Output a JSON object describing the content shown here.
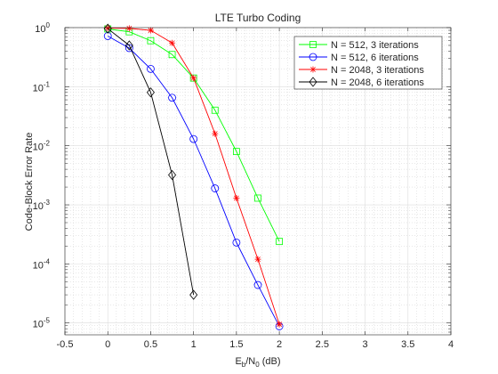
{
  "chart_data": {
    "type": "line",
    "title": "LTE Turbo Coding",
    "xlabel": {
      "main": "E",
      "sub": "b",
      "rest": "/N",
      "sub2": "0",
      "tail": " (dB)"
    },
    "ylabel": "Code-Block Error Rate",
    "xlim": [
      -0.5,
      4
    ],
    "ylim": [
      -5.2,
      0
    ],
    "yscale": "log",
    "grid": true,
    "minor_grid": true,
    "legend_position": "top-right",
    "x_ticks": [
      {
        "value": -0.5,
        "label": "-0.5"
      },
      {
        "value": 0,
        "label": "0"
      },
      {
        "value": 0.5,
        "label": "0.5"
      },
      {
        "value": 1,
        "label": "1"
      },
      {
        "value": 1.5,
        "label": "1.5"
      },
      {
        "value": 2,
        "label": "2"
      },
      {
        "value": 2.5,
        "label": "2.5"
      },
      {
        "value": 3,
        "label": "3"
      },
      {
        "value": 3.5,
        "label": "3.5"
      },
      {
        "value": 4,
        "label": "4"
      }
    ],
    "y_ticks": [
      {
        "exp": 0,
        "label": "10",
        "sup": "0"
      },
      {
        "exp": -1,
        "label": "10",
        "sup": "-1"
      },
      {
        "exp": -2,
        "label": "10",
        "sup": "-2"
      },
      {
        "exp": -3,
        "label": "10",
        "sup": "-3"
      },
      {
        "exp": -4,
        "label": "10",
        "sup": "-4"
      },
      {
        "exp": -5,
        "label": "10",
        "sup": "-5"
      }
    ],
    "series": [
      {
        "name": "N = 512, 3 iterations",
        "color": "#00ff00",
        "marker": "square",
        "x": [
          0,
          0.25,
          0.5,
          0.75,
          1,
          1.25,
          1.5,
          1.75,
          2
        ],
        "y": [
          0.95,
          0.85,
          0.6,
          0.35,
          0.14,
          0.04,
          0.008,
          0.0013,
          0.00024
        ]
      },
      {
        "name": "N = 512, 6 iterations",
        "color": "#0000ff",
        "marker": "circle",
        "x": [
          0,
          0.25,
          0.5,
          0.75,
          1,
          1.25,
          1.5,
          1.75,
          2
        ],
        "y": [
          0.72,
          0.45,
          0.2,
          0.065,
          0.013,
          0.0019,
          0.00023,
          4.4e-05,
          8.8e-06
        ]
      },
      {
        "name": "N = 2048, 3 iterations",
        "color": "#ff0000",
        "marker": "asterisk",
        "x": [
          0,
          0.25,
          0.5,
          0.75,
          1,
          1.25,
          1.5,
          1.75,
          2
        ],
        "y": [
          0.98,
          0.97,
          0.9,
          0.55,
          0.14,
          0.016,
          0.0013,
          0.00012,
          9.5e-06
        ]
      },
      {
        "name": "N = 2048, 6 iterations",
        "color": "#000000",
        "marker": "diamond",
        "x": [
          0,
          0.25,
          0.5,
          0.75,
          1
        ],
        "y": [
          0.96,
          0.5,
          0.08,
          0.0032,
          3e-05
        ]
      }
    ]
  }
}
